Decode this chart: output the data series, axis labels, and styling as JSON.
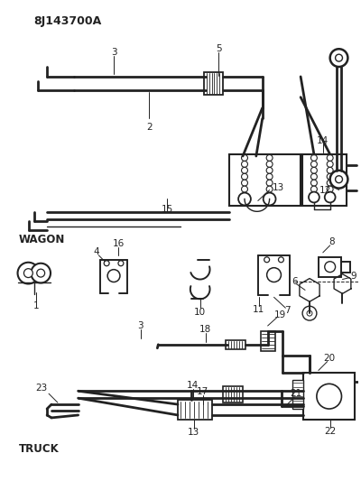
{
  "title": "8J143700A",
  "bg_color": "#ffffff",
  "line_color": "#222222",
  "text_color": "#222222",
  "fig_width": 4.0,
  "fig_height": 5.33,
  "dpi": 100,
  "wagon_label": "WAGON",
  "truck_label": "TRUCK"
}
